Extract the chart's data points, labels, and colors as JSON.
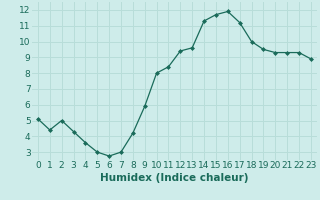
{
  "x": [
    0,
    1,
    2,
    3,
    4,
    5,
    6,
    7,
    8,
    9,
    10,
    11,
    12,
    13,
    14,
    15,
    16,
    17,
    18,
    19,
    20,
    21,
    22,
    23
  ],
  "y": [
    5.1,
    4.4,
    5.0,
    4.3,
    3.6,
    3.0,
    2.75,
    3.0,
    4.2,
    5.9,
    8.0,
    8.4,
    9.4,
    9.6,
    11.3,
    11.7,
    11.9,
    11.2,
    10.0,
    9.5,
    9.3,
    9.3,
    9.3,
    8.9
  ],
  "line_color": "#1a6b5a",
  "marker": "D",
  "marker_size": 2.0,
  "background_color": "#ceecea",
  "grid_color": "#b8ddd9",
  "xlabel": "Humidex (Indice chaleur)",
  "ylim": [
    2.5,
    12.5
  ],
  "xlim": [
    -0.5,
    23.5
  ],
  "yticks": [
    3,
    4,
    5,
    6,
    7,
    8,
    9,
    10,
    11,
    12
  ],
  "xticks": [
    0,
    1,
    2,
    3,
    4,
    5,
    6,
    7,
    8,
    9,
    10,
    11,
    12,
    13,
    14,
    15,
    16,
    17,
    18,
    19,
    20,
    21,
    22,
    23
  ],
  "tick_fontsize": 6.5,
  "xlabel_fontsize": 7.5,
  "linewidth": 0.9
}
